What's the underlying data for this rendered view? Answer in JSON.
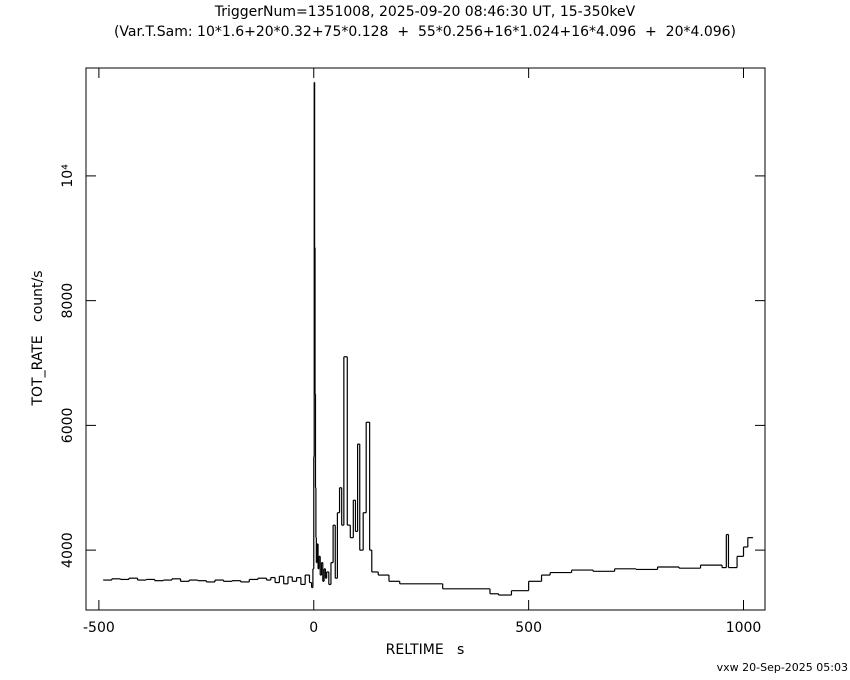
{
  "chart_data": {
    "type": "line",
    "step": true,
    "title": "TriggerNum=1351008, 2025-09-20 08:46:30 UT, 15-350keV",
    "subtitle": "(Var.T.Sam: 10*1.6+20*0.32+75*0.128  +  55*0.256+16*1.024+16*4.096  +  20*4.096)",
    "x_label": "RELTIME   s",
    "y_label": "TOT_RATE   count/s",
    "footer": "vxw 20-Sep-2025 05:03",
    "color": "#000000",
    "xlim": [
      -530,
      1050
    ],
    "ylim": [
      3040,
      11730
    ],
    "xticks": [
      -500,
      0,
      500,
      1000
    ],
    "yticks": [
      4000,
      6000,
      8000,
      {
        "value": 10000,
        "label": "10⁴"
      }
    ],
    "x": [
      -490,
      -470,
      -450,
      -430,
      -410,
      -390,
      -370,
      -350,
      -330,
      -310,
      -290,
      -270,
      -250,
      -230,
      -210,
      -190,
      -170,
      -150,
      -130,
      -110,
      -100,
      -90,
      -80,
      -70,
      -60,
      -50,
      -40,
      -30,
      -20,
      -10,
      -5,
      -2,
      0,
      1,
      2,
      3,
      4,
      5,
      6,
      8,
      10,
      12,
      15,
      18,
      21,
      24,
      27,
      30,
      35,
      40,
      45,
      50,
      55,
      60,
      65,
      70,
      78,
      85,
      92,
      97,
      102,
      107,
      115,
      122,
      130,
      135,
      150,
      175,
      200,
      300,
      410,
      430,
      460,
      500,
      530,
      550,
      600,
      650,
      700,
      750,
      800,
      850,
      900,
      950,
      960,
      965,
      985,
      1000,
      1010,
      1020
    ],
    "values": [
      3520,
      3540,
      3530,
      3550,
      3520,
      3530,
      3510,
      3520,
      3540,
      3500,
      3520,
      3510,
      3490,
      3520,
      3500,
      3510,
      3490,
      3530,
      3550,
      3520,
      3560,
      3480,
      3580,
      3460,
      3570,
      3500,
      3560,
      3450,
      3600,
      3480,
      3400,
      3700,
      5500,
      11500,
      8850,
      6500,
      5000,
      4200,
      3800,
      4100,
      3700,
      3900,
      3600,
      3800,
      3500,
      3700,
      3550,
      3650,
      3450,
      3800,
      4400,
      3550,
      4600,
      5000,
      4400,
      7100,
      4400,
      4200,
      4800,
      4300,
      5700,
      4000,
      4600,
      6050,
      4000,
      3650,
      3600,
      3500,
      3460,
      3380,
      3300,
      3280,
      3350,
      3500,
      3600,
      3640,
      3680,
      3660,
      3700,
      3690,
      3730,
      3710,
      3760,
      3720,
      4250,
      3720,
      3900,
      4050,
      4200,
      4200
    ]
  }
}
